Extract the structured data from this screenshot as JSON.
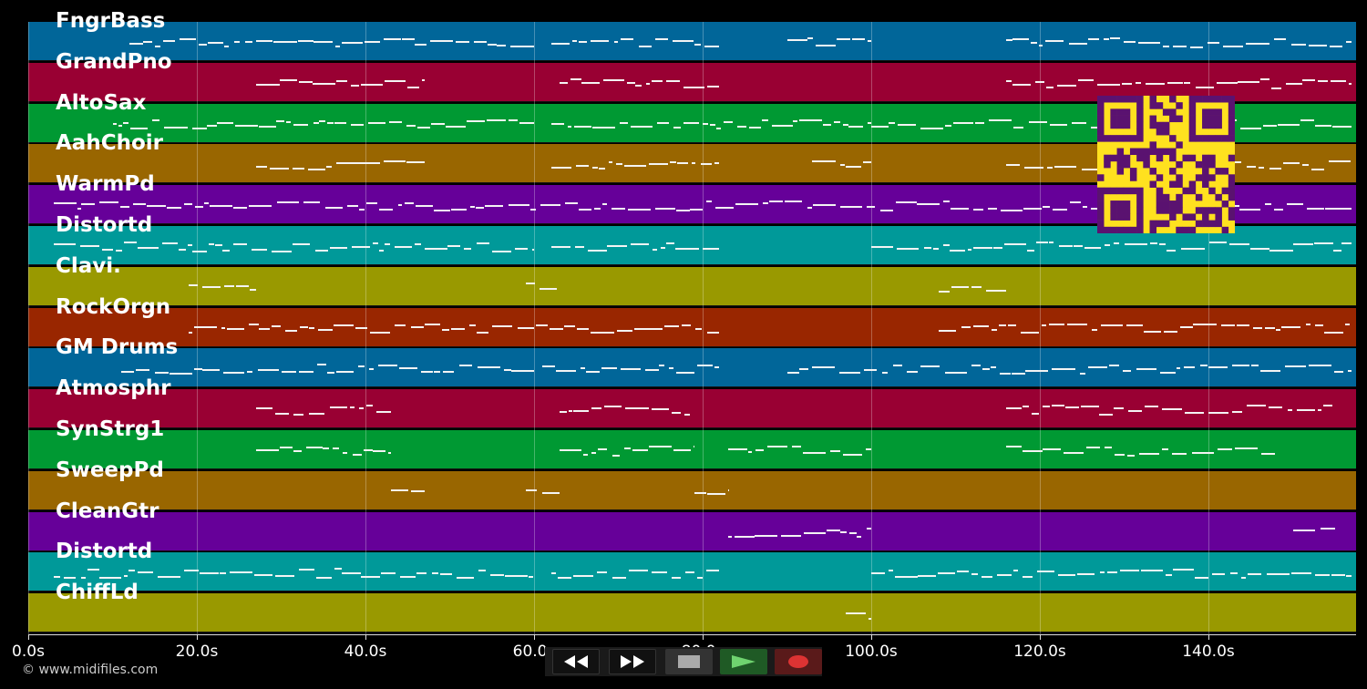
{
  "tracks": [
    {
      "name": "FngrBass",
      "color": "#016699"
    },
    {
      "name": "GrandPno",
      "color": "#990033"
    },
    {
      "name": "AltoSax",
      "color": "#009933"
    },
    {
      "name": "AahChoir",
      "color": "#996600"
    },
    {
      "name": "WarmPd",
      "color": "#660099"
    },
    {
      "name": "Distortd",
      "color": "#009999"
    },
    {
      "name": "Clavi.",
      "color": "#999900"
    },
    {
      "name": "RockOrgn",
      "color": "#992600"
    },
    {
      "name": "GM Drums",
      "color": "#016699"
    },
    {
      "name": "Atmosphr",
      "color": "#990033"
    },
    {
      "name": "SynStrg1",
      "color": "#009933"
    },
    {
      "name": "SweepPd",
      "color": "#996600"
    },
    {
      "name": "CleanGtr",
      "color": "#660099"
    },
    {
      "name": "Distortd",
      "color": "#009999"
    },
    {
      "name": "ChiffLd",
      "color": "#999900"
    }
  ],
  "time_axis": {
    "ticks": [
      "0.0s",
      "20.0s",
      "40.0s",
      "60.0s",
      "80.0s",
      "100.0s",
      "120.0s",
      "140.0s"
    ]
  },
  "copyright": "© www.midifiles.com",
  "transport": {
    "rewind_icon": "rewind-icon",
    "fast_forward_icon": "fast-forward-icon",
    "stop_icon": "stop-icon",
    "play_icon": "play-icon",
    "record_icon": "record-icon"
  },
  "qr_code": {
    "color": "#ffe11f",
    "module_color": "#5a1270"
  }
}
